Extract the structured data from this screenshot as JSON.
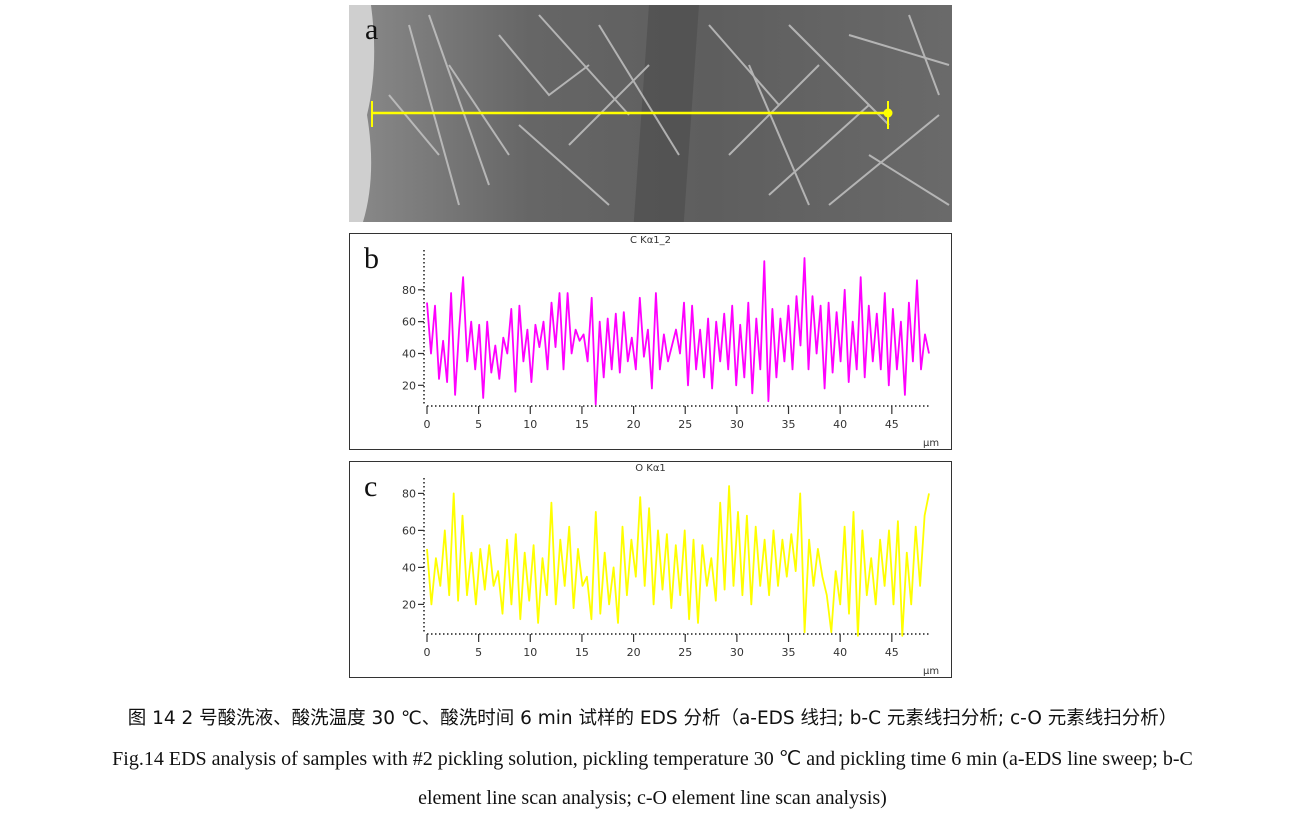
{
  "panels": {
    "a": {
      "letter": "a"
    },
    "b": {
      "letter": "b"
    },
    "c": {
      "letter": "c"
    }
  },
  "chart_data": [
    {
      "type": "line",
      "title": "C Kα1_2",
      "panel": "b",
      "xlabel": "µm",
      "ylabel": "",
      "color": "#ff00ff",
      "x_ticks": [
        0,
        5,
        10,
        15,
        20,
        25,
        30,
        35,
        40,
        45
      ],
      "y_ticks": [
        20,
        40,
        60,
        80
      ],
      "xlim": [
        0,
        48.6
      ],
      "ylim": [
        7,
        100
      ],
      "grid": false,
      "values": [
        72,
        40,
        70,
        24,
        48,
        22,
        78,
        14,
        55,
        88,
        35,
        60,
        30,
        58,
        12,
        60,
        28,
        45,
        24,
        50,
        40,
        68,
        16,
        70,
        35,
        55,
        22,
        58,
        44,
        60,
        30,
        72,
        44,
        78,
        30,
        78,
        40,
        55,
        48,
        52,
        35,
        75,
        8,
        60,
        25,
        62,
        30,
        65,
        28,
        66,
        35,
        50,
        30,
        75,
        38,
        55,
        18,
        78,
        30,
        52,
        35,
        45,
        55,
        40,
        72,
        20,
        70,
        30,
        55,
        25,
        62,
        18,
        60,
        35,
        65,
        30,
        70,
        20,
        58,
        25,
        72,
        15,
        62,
        30,
        98,
        10,
        68,
        25,
        62,
        35,
        70,
        30,
        76,
        45,
        100,
        30,
        76,
        40,
        70,
        18,
        72,
        28,
        66,
        35,
        80,
        22,
        60,
        30,
        88,
        25,
        70,
        35,
        65,
        30,
        78,
        20,
        68,
        30,
        60,
        14,
        72,
        35,
        86,
        30,
        52,
        40
      ]
    },
    {
      "type": "line",
      "title": "O Kα1",
      "panel": "c",
      "xlabel": "µm",
      "ylabel": "",
      "color": "#ffff00",
      "x_ticks": [
        0,
        5,
        10,
        15,
        20,
        25,
        30,
        35,
        40,
        45
      ],
      "y_ticks": [
        20,
        40,
        60,
        80
      ],
      "xlim": [
        0,
        48.6
      ],
      "ylim": [
        4,
        84
      ],
      "grid": false,
      "values": [
        50,
        20,
        45,
        30,
        60,
        25,
        80,
        22,
        68,
        25,
        48,
        20,
        50,
        28,
        52,
        30,
        38,
        15,
        55,
        20,
        58,
        12,
        48,
        22,
        52,
        10,
        45,
        25,
        75,
        20,
        55,
        30,
        62,
        18,
        50,
        30,
        35,
        12,
        70,
        15,
        48,
        20,
        40,
        10,
        62,
        25,
        55,
        35,
        78,
        30,
        72,
        20,
        60,
        28,
        58,
        18,
        52,
        25,
        60,
        12,
        55,
        10,
        52,
        30,
        45,
        22,
        75,
        28,
        84,
        30,
        70,
        25,
        68,
        20,
        62,
        30,
        55,
        25,
        60,
        30,
        55,
        35,
        58,
        38,
        80,
        5,
        55,
        30,
        50,
        35,
        25,
        5,
        38,
        20,
        62,
        15,
        70,
        3,
        60,
        25,
        45,
        20,
        55,
        30,
        60,
        20,
        65,
        3,
        48,
        20,
        62,
        30,
        68,
        80
      ]
    }
  ],
  "caption": {
    "cn": "图 14 2 号酸洗液、酸洗温度 30 ℃、酸洗时间 6 min 试样的 EDS 分析（a-EDS 线扫; b-C 元素线扫分析; c-O 元素线扫分析）",
    "en_line1": "Fig.14 EDS analysis of samples with #2 pickling solution, pickling temperature 30 ℃ and pickling time 6 min (a-EDS line sweep; b-C",
    "en_line2": "element line scan analysis; c-O element line scan analysis)"
  },
  "colors": {
    "scan_line": "#ffff00",
    "c_series": "#ff00ff",
    "o_series": "#ffff00"
  }
}
